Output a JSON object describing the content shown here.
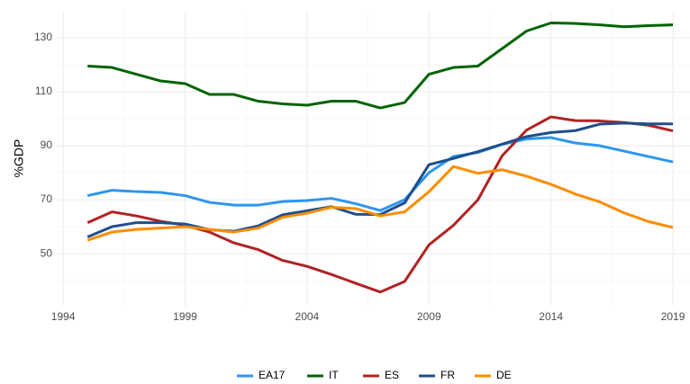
{
  "chart_data": {
    "type": "line",
    "ylabel": "%GDP",
    "x": [
      1995,
      1996,
      1997,
      1998,
      1999,
      2000,
      2001,
      2002,
      2003,
      2004,
      2005,
      2006,
      2007,
      2008,
      2009,
      2010,
      2011,
      2012,
      2013,
      2014,
      2015,
      2016,
      2017,
      2018,
      2019
    ],
    "series": [
      {
        "name": "EA17",
        "color": "#2e95f0",
        "values": [
          71.5,
          73.5,
          73,
          72.7,
          71.5,
          69,
          68,
          68,
          69.3,
          69.7,
          70.5,
          68.5,
          66,
          70,
          80,
          86,
          87.5,
          90.5,
          92.5,
          93,
          91,
          90,
          88,
          86,
          84
        ]
      },
      {
        "name": "IT",
        "color": "#006400",
        "values": [
          119.5,
          119,
          116.5,
          114,
          113,
          109,
          109,
          106.5,
          105.5,
          105,
          106.5,
          106.5,
          104,
          106,
          116.5,
          119,
          119.5,
          126,
          132.5,
          135.5,
          135.3,
          134.8,
          134.1,
          134.5,
          134.8
        ]
      },
      {
        "name": "ES",
        "color": "#b22222",
        "values": [
          61.5,
          65.5,
          64,
          62,
          60.5,
          58,
          54,
          51.5,
          47.5,
          45.3,
          42.3,
          39,
          35.8,
          39.7,
          53.3,
          60.5,
          69.9,
          86.3,
          95.8,
          100.7,
          99.3,
          99.2,
          98.6,
          97.6,
          95.5
        ]
      },
      {
        "name": "FR",
        "color": "#1f4e8c",
        "values": [
          56.2,
          60,
          61.5,
          61.5,
          61,
          58.9,
          58.3,
          60.3,
          64.4,
          65.9,
          67.4,
          64.6,
          64.5,
          68.8,
          83,
          85.3,
          87.8,
          90.6,
          93.4,
          94.9,
          95.6,
          98,
          98.4,
          98.1,
          98.1
        ]
      },
      {
        "name": "DE",
        "color": "#ff8c00",
        "values": [
          55,
          58,
          59,
          59.5,
          60,
          59,
          58,
          59.5,
          63.5,
          65,
          67.2,
          66.7,
          64,
          65.5,
          73,
          82.3,
          79.8,
          81.1,
          78.7,
          75.7,
          72.1,
          69.2,
          65.1,
          61.9,
          59.7
        ]
      }
    ],
    "xlim": [
      1993.7,
      2019.7
    ],
    "xticks": [
      1994,
      1999,
      2004,
      2009,
      2014,
      2019
    ],
    "ylim": [
      30.7,
      140
    ],
    "yticks": [
      50,
      70,
      90,
      110,
      130
    ],
    "grid": true,
    "legend": "bottom"
  }
}
